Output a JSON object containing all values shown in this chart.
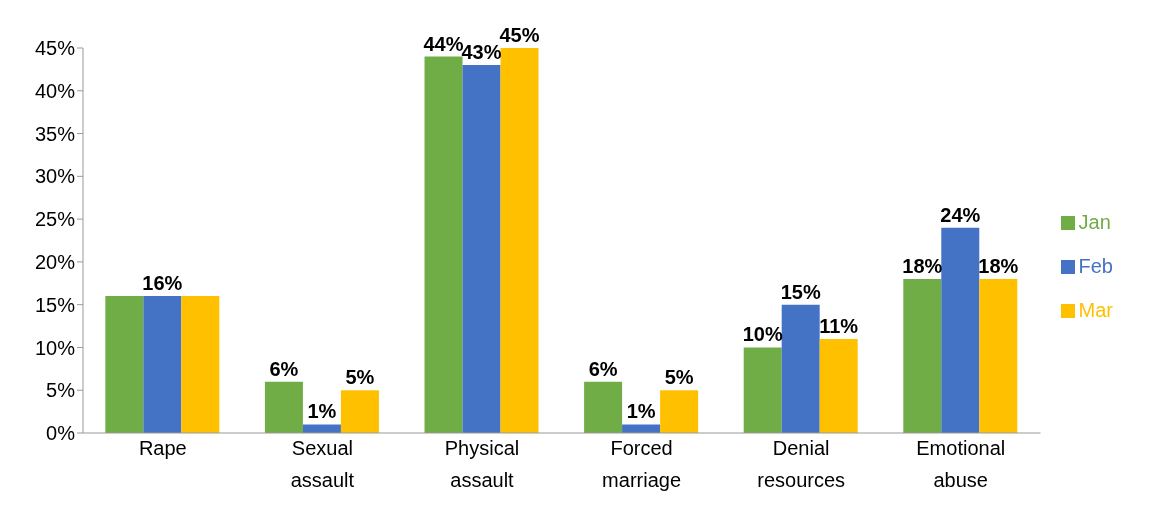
{
  "chart_data": {
    "type": "bar",
    "categories": [
      "Rape",
      "Sexual assault",
      "Physical assault",
      "Forced marriage",
      "Denial resources",
      "Emotional abuse"
    ],
    "series": [
      {
        "name": "Jan",
        "color": "#70ad47",
        "values": [
          16,
          6,
          44,
          6,
          10,
          18
        ],
        "value_labels": [
          null,
          "6%",
          "44%",
          "6%",
          "10%",
          "18%"
        ]
      },
      {
        "name": "Feb",
        "color": "#4472c4",
        "values": [
          16,
          1,
          43,
          1,
          15,
          24
        ],
        "value_labels": [
          "16%",
          "1%",
          "43%",
          "1%",
          "15%",
          "24%"
        ]
      },
      {
        "name": "Mar",
        "color": "#ffc000",
        "values": [
          16,
          5,
          45,
          5,
          11,
          18
        ],
        "value_labels": [
          null,
          "5%",
          "45%",
          "5%",
          "11%",
          "18%"
        ]
      }
    ],
    "ylim": [
      0,
      45
    ],
    "yticks": [
      {
        "value": 0,
        "label": "0%"
      },
      {
        "value": 5,
        "label": "5%"
      },
      {
        "value": 10,
        "label": "10%"
      },
      {
        "value": 15,
        "label": "15%"
      },
      {
        "value": 20,
        "label": "20%"
      },
      {
        "value": 25,
        "label": "25%"
      },
      {
        "value": 30,
        "label": "30%"
      },
      {
        "value": 35,
        "label": "35%"
      },
      {
        "value": 40,
        "label": "40%"
      },
      {
        "value": 45,
        "label": "45%"
      }
    ],
    "grid": false,
    "legend": "right"
  }
}
